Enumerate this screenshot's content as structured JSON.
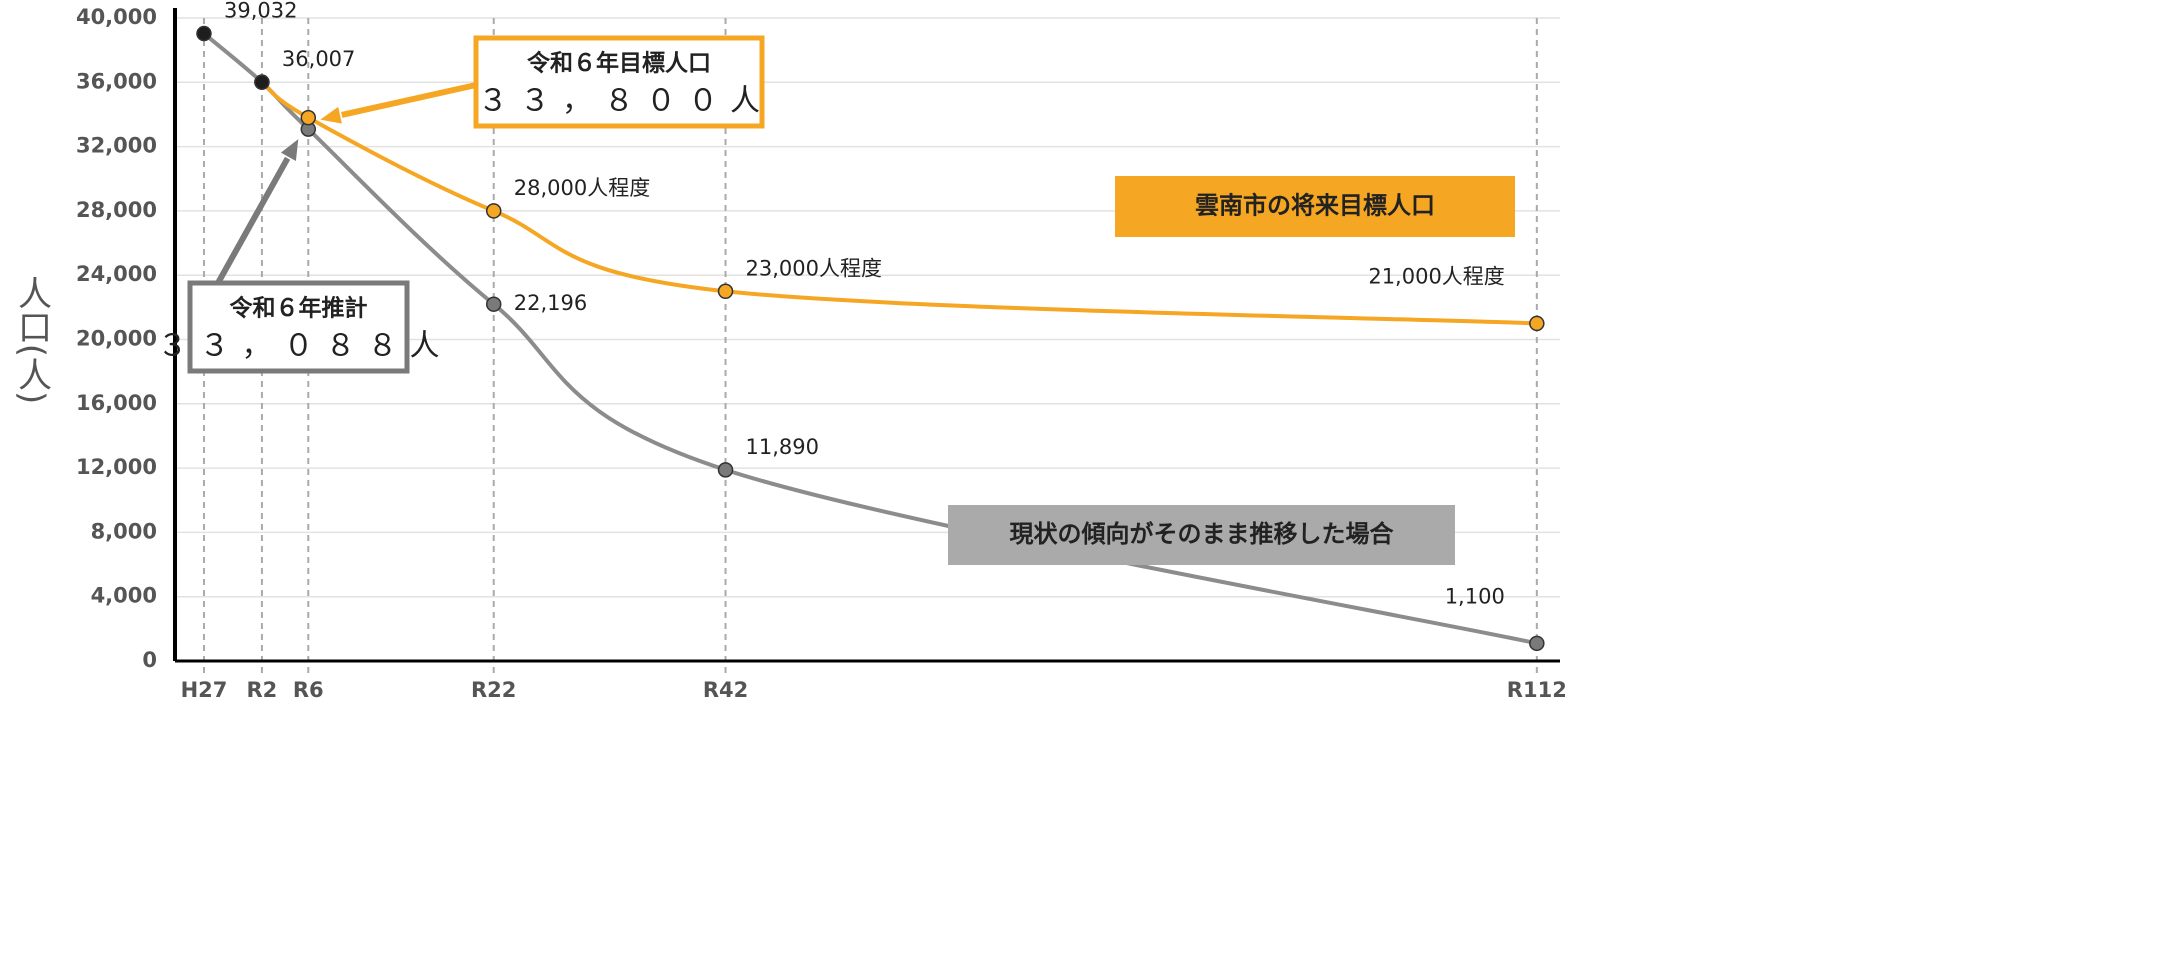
{
  "chart_data": {
    "type": "line",
    "y_label": "人口(人)",
    "x": [
      2015,
      2020,
      2024,
      2040,
      2060,
      2130
    ],
    "xlim": [
      2012.5,
      2132
    ],
    "xticks": [
      {
        "value": 2015,
        "label": "H27"
      },
      {
        "value": 2020,
        "label": "R2"
      },
      {
        "value": 2024,
        "label": "R6"
      },
      {
        "value": 2040,
        "label": "R22"
      },
      {
        "value": 2060,
        "label": "R42"
      },
      {
        "value": 2130,
        "label": "R112"
      }
    ],
    "ylim": [
      0,
      40000
    ],
    "yticks": [
      0,
      {
        "value": 4000,
        "label": "4,000"
      },
      {
        "value": 8000,
        "label": "8,000"
      },
      {
        "value": 12000,
        "label": "12,000"
      },
      {
        "value": 16000,
        "label": "16,000"
      },
      {
        "value": 20000,
        "label": "20,000"
      },
      {
        "value": 24000,
        "label": "24,000"
      },
      {
        "value": 28000,
        "label": "28,000"
      },
      {
        "value": 32000,
        "label": "32,000"
      },
      {
        "value": 36000,
        "label": "36,000"
      },
      {
        "value": 40000,
        "label": "40,000"
      }
    ],
    "grid": true,
    "series": [
      {
        "name": "現状の傾向がそのまま推移した場合",
        "color": "#8c8c8c",
        "marker_colors": [
          "#1e1e1e",
          "#1e1e1e",
          "#7a7a7a",
          "#7a7a7a",
          "#7a7a7a",
          "#7a7a7a"
        ],
        "values": [
          39032,
          36007,
          33088,
          22196,
          11890,
          1100
        ],
        "value_labels": [
          "39,032",
          "36,007",
          null,
          "22,196",
          "11,890",
          "1,100"
        ]
      },
      {
        "name": "雲南市の将来目標人口",
        "color": "#f5a623",
        "marker_colors": [
          null,
          "#1e1e1e",
          "#f5a623",
          "#f5a623",
          "#f5a623",
          "#f5a623"
        ],
        "values": [
          null,
          36007,
          33800,
          28000,
          23000,
          21000
        ],
        "value_labels": [
          null,
          null,
          null,
          "28,000人程度",
          "23,000人程度",
          "21,000人程度"
        ]
      }
    ],
    "annotations": [
      {
        "lines": [
          "令和６年目標人口",
          "３３，８００人"
        ],
        "series": 1,
        "point": 2
      },
      {
        "lines": [
          "令和６年推計",
          "３３，０８８人"
        ],
        "series": 0,
        "point": 2
      }
    ]
  }
}
